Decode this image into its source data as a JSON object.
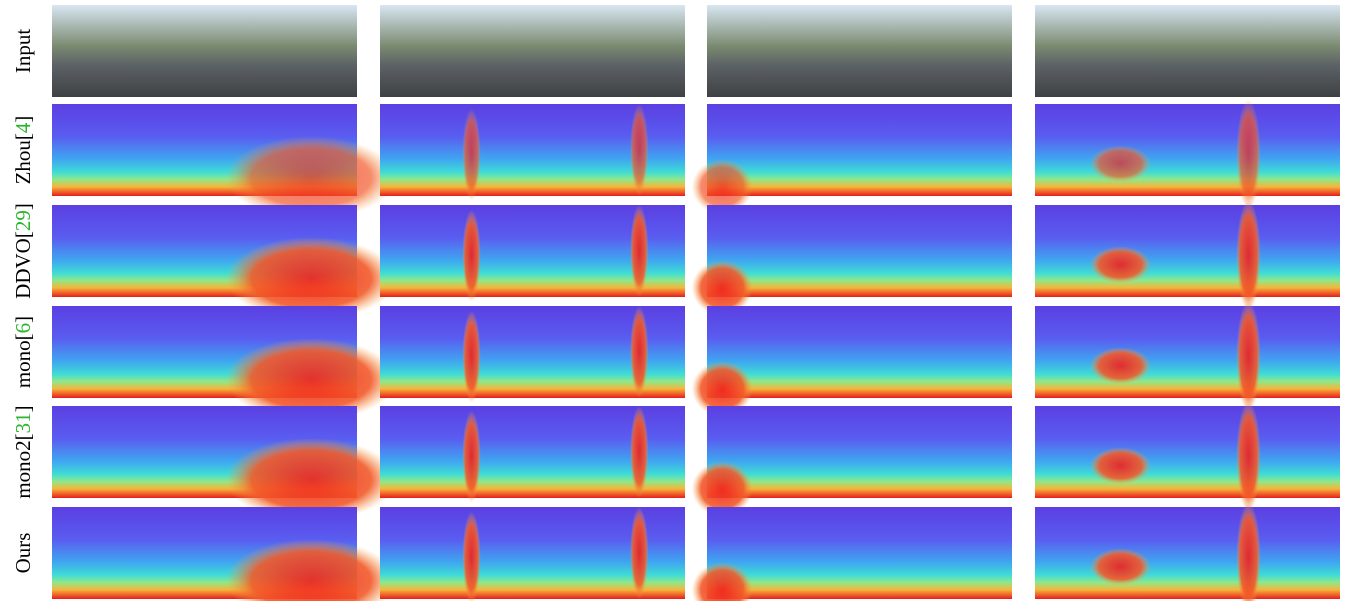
{
  "figure": {
    "rows": [
      {
        "label_parts": [
          "Input"
        ]
      },
      {
        "label_parts": [
          "Zhou[",
          "4",
          "]"
        ]
      },
      {
        "label_parts": [
          "DDVO[",
          "29",
          "]"
        ]
      },
      {
        "label_parts": [
          "mono[",
          "6",
          "]"
        ]
      },
      {
        "label_parts": [
          "mono2[",
          "31",
          "]"
        ]
      },
      {
        "label_parts": [
          "Ours"
        ]
      }
    ]
  }
}
